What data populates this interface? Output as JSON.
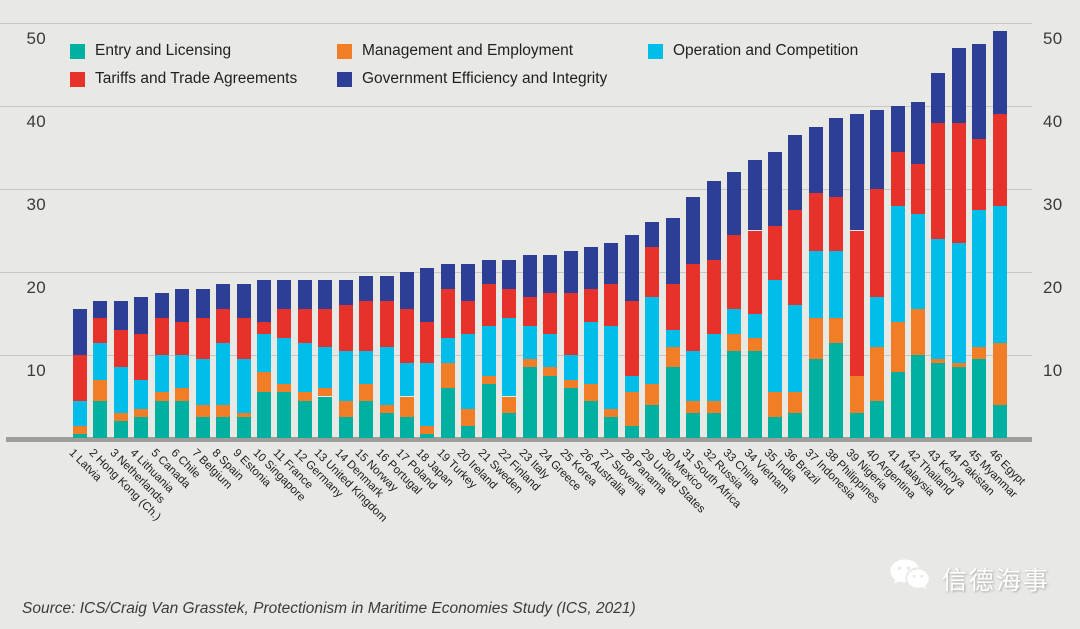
{
  "source": {
    "text": "Source: ICS/Craig Van Grasstek, Protectionism in Maritime Economies Study (ICS, 2021)"
  },
  "watermark": {
    "icon": "wechat-icon",
    "text": "信德海事"
  },
  "colors": {
    "background": "#e8e8e5",
    "gridline": "#c6c6c3",
    "baseline": "#9d9d9a",
    "axis_text": "#3a3a38",
    "label_text": "#1d1d1b"
  },
  "chart_data": {
    "type": "bar",
    "stacked": true,
    "title": "",
    "xlabel": "",
    "ylabel": "",
    "ylim": [
      0,
      50
    ],
    "y_ticks": [
      10,
      20,
      30,
      40,
      50
    ],
    "y_axis_sides": [
      "left",
      "right"
    ],
    "grid": true,
    "legend_position": "top-inside",
    "categories": [
      {
        "rank": "1",
        "name": "Latvia"
      },
      {
        "rank": "2",
        "name": "Hong Kong (Ch.)"
      },
      {
        "rank": "3",
        "name": "Netherlands"
      },
      {
        "rank": "4",
        "name": "Lithuania"
      },
      {
        "rank": "5",
        "name": "Canada"
      },
      {
        "rank": "6",
        "name": "Chile"
      },
      {
        "rank": "7",
        "name": "Belgium"
      },
      {
        "rank": "8",
        "name": "Spain"
      },
      {
        "rank": "9",
        "name": "Estonia"
      },
      {
        "rank": "10",
        "name": "Singapore"
      },
      {
        "rank": "11",
        "name": "France"
      },
      {
        "rank": "12",
        "name": "Germany"
      },
      {
        "rank": "13",
        "name": "United Kingdom"
      },
      {
        "rank": "14",
        "name": "Denmark"
      },
      {
        "rank": "15",
        "name": "Norway"
      },
      {
        "rank": "16",
        "name": "Portugal"
      },
      {
        "rank": "17",
        "name": "Poland"
      },
      {
        "rank": "18",
        "name": "Japan"
      },
      {
        "rank": "19",
        "name": "Turkey"
      },
      {
        "rank": "20",
        "name": "Ireland"
      },
      {
        "rank": "21",
        "name": "Sweden"
      },
      {
        "rank": "22",
        "name": "Finland"
      },
      {
        "rank": "23",
        "name": "Italy"
      },
      {
        "rank": "24",
        "name": "Greece"
      },
      {
        "rank": "25",
        "name": "Korea"
      },
      {
        "rank": "26",
        "name": "Australia"
      },
      {
        "rank": "27",
        "name": "Slovenia"
      },
      {
        "rank": "28",
        "name": "Panama"
      },
      {
        "rank": "29",
        "name": "United States"
      },
      {
        "rank": "30",
        "name": "Mexico"
      },
      {
        "rank": "31",
        "name": "South Africa"
      },
      {
        "rank": "32",
        "name": "Russia"
      },
      {
        "rank": "33",
        "name": "China"
      },
      {
        "rank": "34",
        "name": "Vietnam"
      },
      {
        "rank": "35",
        "name": "India"
      },
      {
        "rank": "36",
        "name": "Brazil"
      },
      {
        "rank": "37",
        "name": "Indonesia"
      },
      {
        "rank": "38",
        "name": "Philippines"
      },
      {
        "rank": "39",
        "name": "Nigeria"
      },
      {
        "rank": "40",
        "name": "Argentina"
      },
      {
        "rank": "41",
        "name": "Malaysia"
      },
      {
        "rank": "42",
        "name": "Thailand"
      },
      {
        "rank": "43",
        "name": "Kenya"
      },
      {
        "rank": "44",
        "name": "Pakistan"
      },
      {
        "rank": "45",
        "name": "Myanmar"
      },
      {
        "rank": "46",
        "name": "Egypt"
      }
    ],
    "series": [
      {
        "name": "Entry and Licensing",
        "color": "#00b0a0",
        "values": [
          0.5,
          4.5,
          2,
          2.5,
          4.5,
          4.5,
          2.5,
          2.5,
          2.5,
          5.5,
          5.5,
          4.5,
          5,
          2.5,
          4.5,
          3,
          2.5,
          0.5,
          6,
          1.5,
          6.5,
          3,
          8.5,
          7.5,
          6,
          4.5,
          2.5,
          1.5,
          4,
          8.5,
          3,
          3,
          10.5,
          10.5,
          2.5,
          3,
          9.5,
          11.5,
          3,
          4.5,
          8,
          10,
          9,
          8.5,
          9.5,
          4
        ]
      },
      {
        "name": "Management and Employment",
        "color": "#f17d26",
        "values": [
          1,
          2.5,
          1,
          1,
          1,
          1.5,
          1.5,
          1.5,
          0.5,
          2.5,
          1,
          1,
          1,
          2,
          2,
          1,
          2.5,
          1,
          3,
          2,
          1,
          2,
          1,
          1,
          1,
          2,
          1,
          4,
          2.5,
          2.5,
          1.5,
          1.5,
          2,
          1.5,
          3,
          2.5,
          5,
          3,
          4.5,
          6.5,
          6,
          5.5,
          0.5,
          0.5,
          1.5,
          7.5
        ]
      },
      {
        "name": "Operation and Competition",
        "color": "#00bdea",
        "values": [
          3,
          4.5,
          5.5,
          3.5,
          4.5,
          4,
          5.5,
          7.5,
          6.5,
          4.5,
          5.5,
          6,
          5,
          6,
          4,
          7,
          4,
          7.5,
          3,
          9,
          6,
          9.5,
          4,
          4,
          3,
          7.5,
          10,
          2,
          10.5,
          2,
          6,
          8,
          3,
          3,
          13.5,
          10.5,
          8,
          8,
          0,
          6,
          14,
          11.5,
          14.5,
          14.5,
          16.5,
          16.5
        ]
      },
      {
        "name": "Tariffs and Trade Agreements",
        "color": "#e7312b",
        "values": [
          5.5,
          3,
          4.5,
          5.5,
          4.5,
          4,
          5,
          4,
          5,
          1.5,
          3.5,
          4,
          4.5,
          5.5,
          6,
          5.5,
          6.5,
          5,
          6,
          4,
          5,
          3.5,
          3.5,
          5,
          7.5,
          4,
          5,
          9,
          6,
          5.5,
          10.5,
          9,
          9,
          10,
          6.5,
          11.5,
          7,
          6.5,
          17.5,
          13,
          6.5,
          6,
          14,
          14.5,
          8.5,
          11
        ]
      },
      {
        "name": "Government Efficiency and Integrity",
        "color": "#2c3e95",
        "values": [
          5.5,
          2,
          3.5,
          4.5,
          3,
          4,
          3.5,
          3,
          4,
          5,
          3.5,
          3.5,
          3.5,
          3,
          3,
          3,
          4.5,
          6.5,
          3,
          4.5,
          3,
          3.5,
          5,
          4.5,
          5,
          5,
          5,
          8,
          3,
          8,
          8,
          9.5,
          7.5,
          8.5,
          9,
          9,
          8,
          9.5,
          14,
          9.5,
          5.5,
          7.5,
          6,
          9,
          11.5,
          10
        ]
      }
    ]
  }
}
